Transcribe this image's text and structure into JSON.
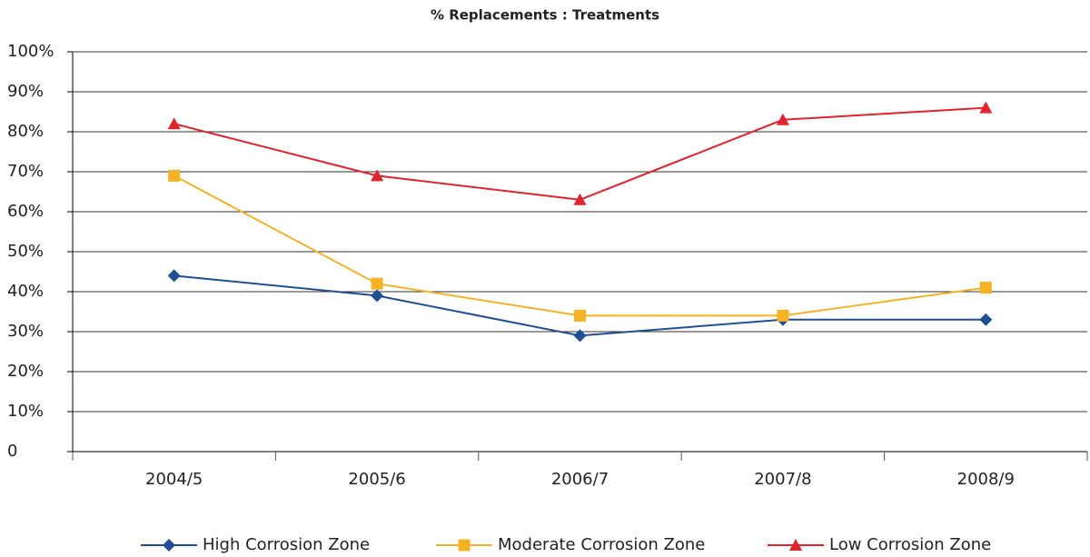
{
  "chart_data": {
    "type": "line",
    "title": "% Replacements : Treatments",
    "categories": [
      "2004/5",
      "2005/6",
      "2006/7",
      "2007/8",
      "2008/9"
    ],
    "series": [
      {
        "name": "High Corrosion Zone",
        "color": "#1f4e96",
        "marker": "diamond",
        "values": [
          44,
          39,
          29,
          33,
          33
        ]
      },
      {
        "name": "Moderate Corrosion Zone",
        "color": "#f5b324",
        "marker": "square",
        "values": [
          69,
          42,
          34,
          34,
          41
        ]
      },
      {
        "name": "Low Corrosion Zone",
        "color": "#e3232c",
        "marker": "triangle",
        "values": [
          82,
          69,
          63,
          83,
          86
        ]
      }
    ],
    "ylim": [
      0,
      100
    ],
    "yticks": [
      0,
      {
        "value": 10,
        "label": "10%"
      },
      {
        "value": 20,
        "label": "20%"
      },
      {
        "value": 30,
        "label": "30%"
      },
      {
        "value": 40,
        "label": "40%"
      },
      {
        "value": 50,
        "label": "50%"
      },
      {
        "value": 60,
        "label": "60%"
      },
      {
        "value": 70,
        "label": "70%"
      },
      {
        "value": 80,
        "label": "80%"
      },
      {
        "value": 90,
        "label": "90%"
      },
      {
        "value": 100,
        "label": "100%"
      }
    ],
    "grid": true,
    "legend": "bottom"
  }
}
